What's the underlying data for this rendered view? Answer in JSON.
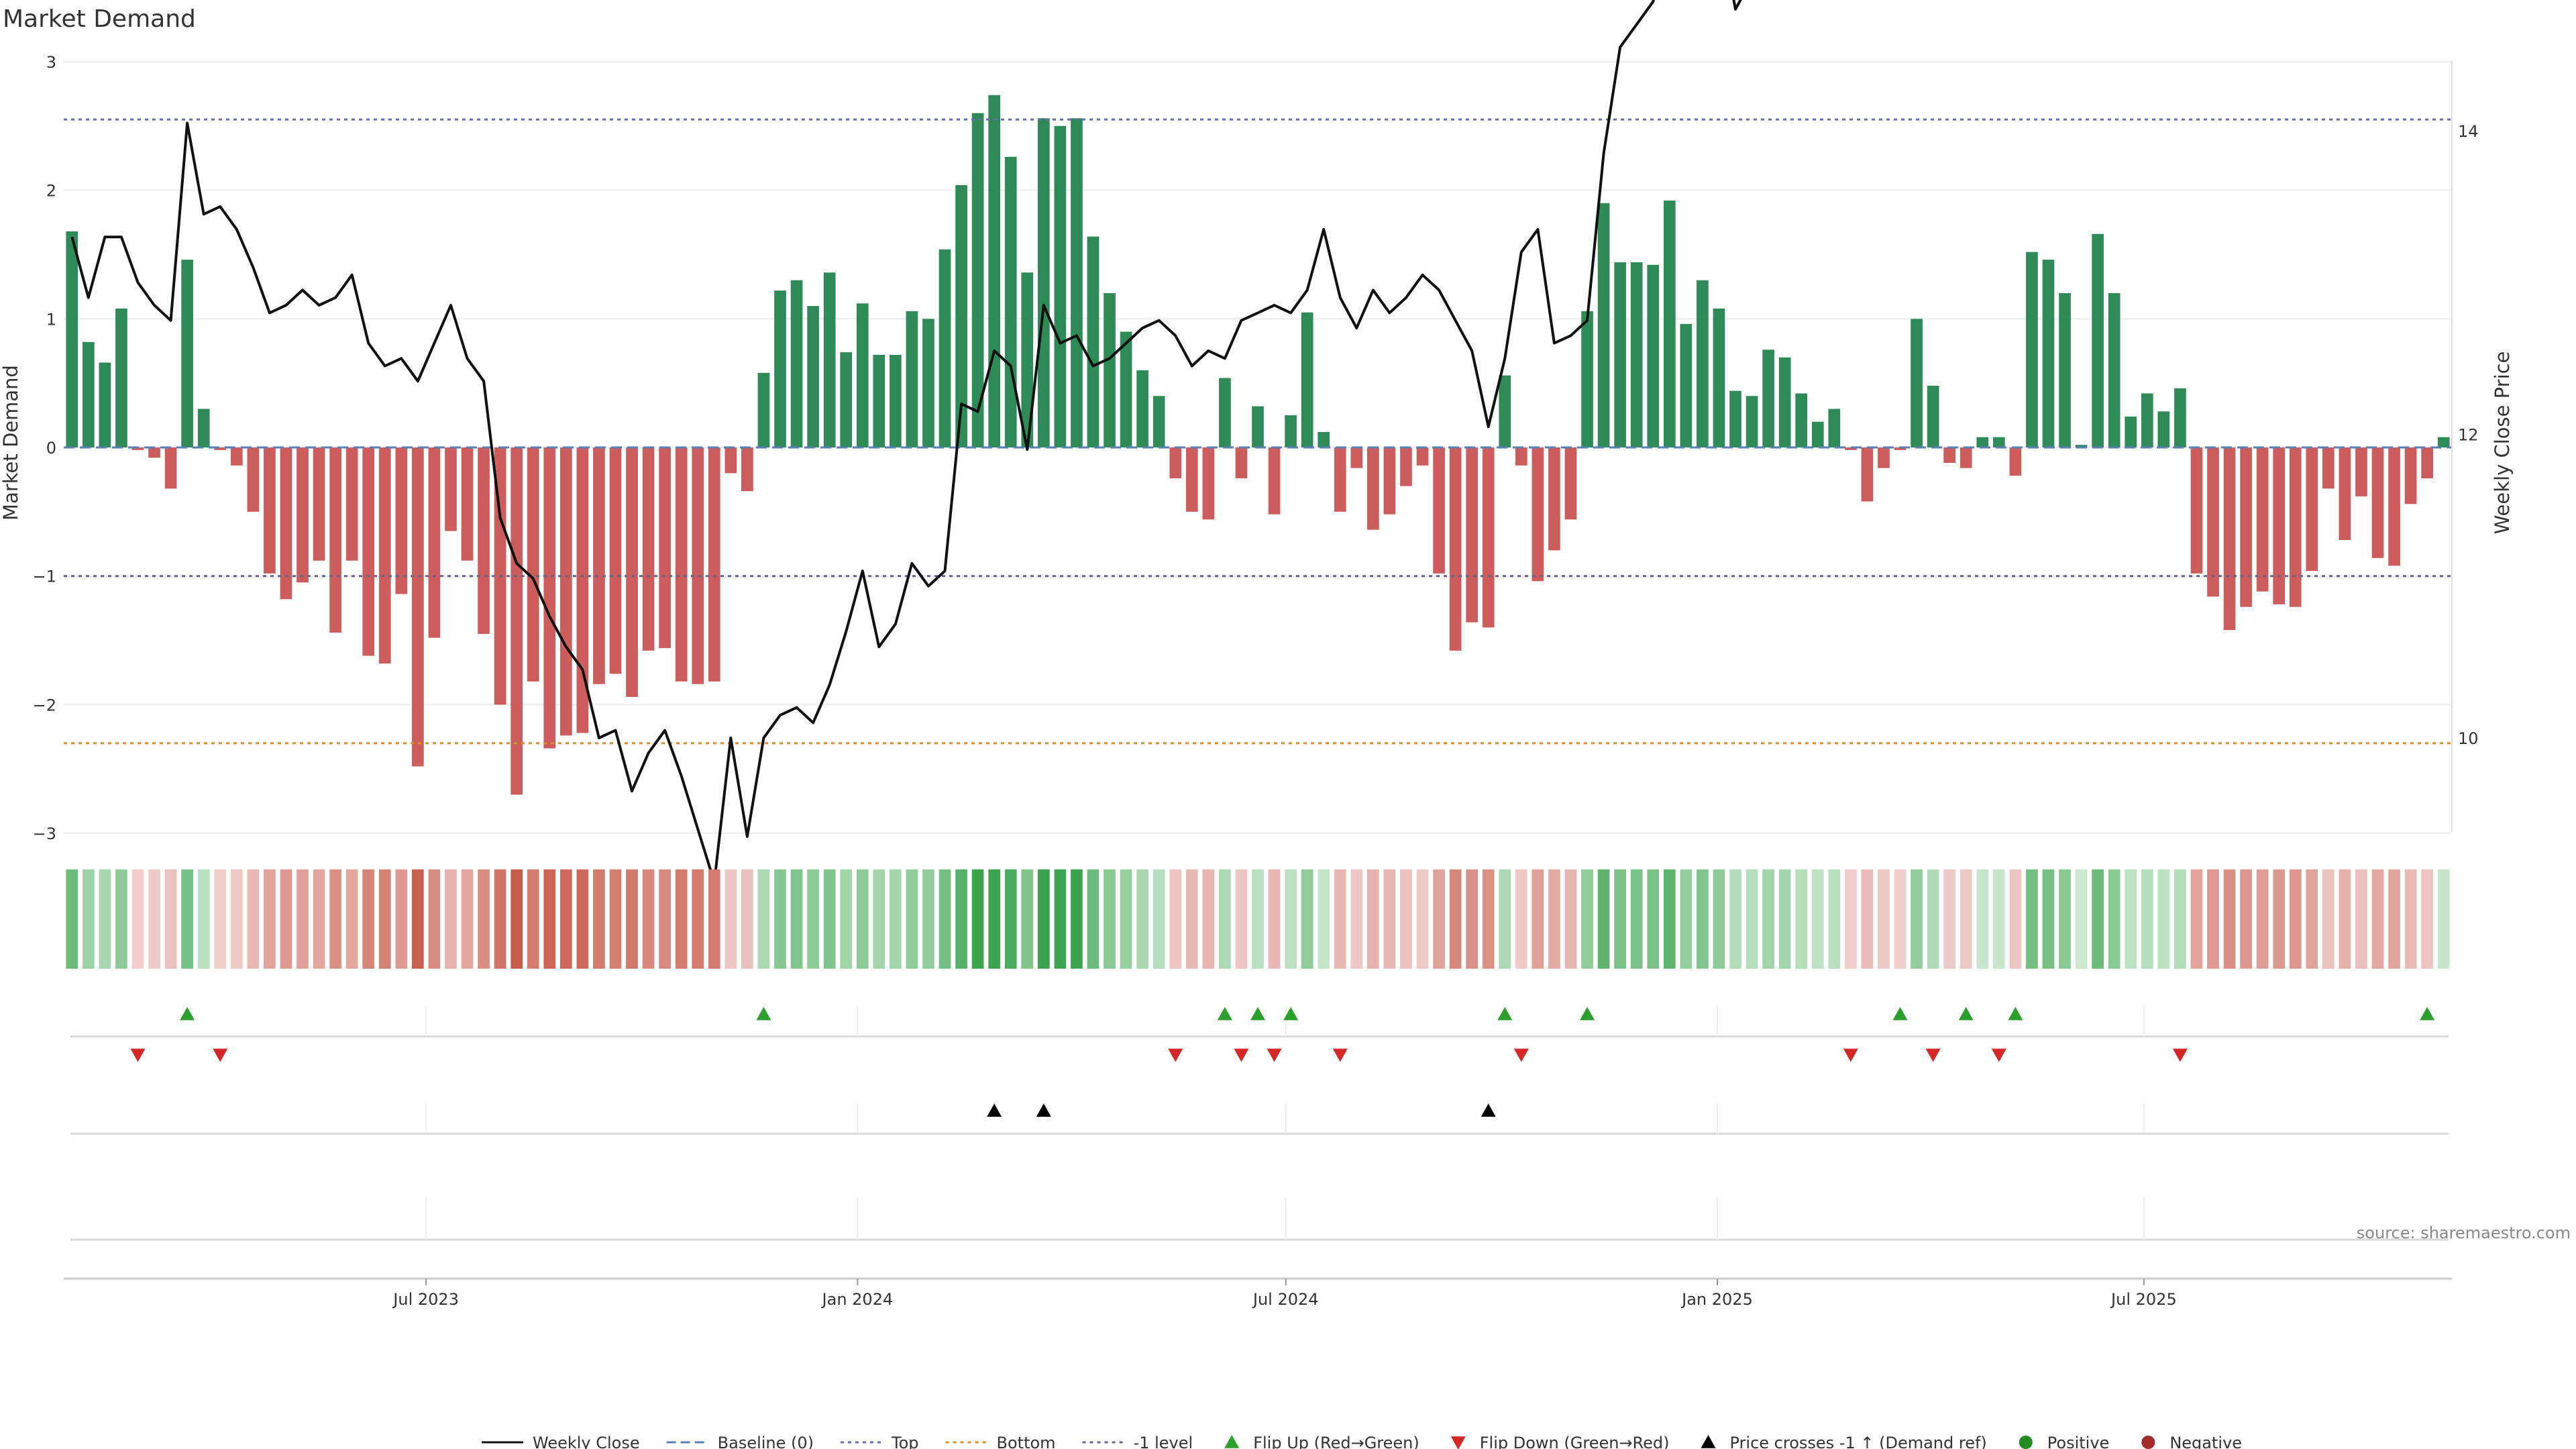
{
  "chart_data": {
    "type": "bar",
    "title": "Market Demand",
    "ylabel_left": "Market Demand",
    "ylabel_right": "Weekly Close Price",
    "ylim_left": [
      -3,
      3
    ],
    "ylim_right": [
      9,
      19
    ],
    "yticks_left": [
      3,
      2,
      1,
      0,
      -1,
      -2,
      -3
    ],
    "yticks_left_labels": [
      "3",
      "2",
      "1",
      "0",
      "−1",
      "−2",
      "−3"
    ],
    "yticks_right": [
      18,
      16,
      14,
      12,
      10
    ],
    "x_ticks": [
      {
        "week": 21.5,
        "label": "Jul 2023"
      },
      {
        "week": 47.7,
        "label": "Jan 2024"
      },
      {
        "week": 73.7,
        "label": "Jul 2024"
      },
      {
        "week": 99.9,
        "label": "Jan 2025"
      },
      {
        "week": 125.8,
        "label": "Jul 2025"
      }
    ],
    "reference_lines": [
      {
        "name": "Top",
        "value": 2.55,
        "color": "#6b6bb3",
        "style": "dotted"
      },
      {
        "name": "Bottom",
        "value": -2.3,
        "color": "#d9902e",
        "style": "dotted"
      },
      {
        "name": "-1 level",
        "value": -1,
        "color": "#666688",
        "style": "dotted"
      },
      {
        "name": "Baseline (0)",
        "value": 0,
        "color": "#5a7fb5",
        "style": "dashed"
      }
    ],
    "colors": {
      "positive": "#2e8b57",
      "negative": "#cd5c5c",
      "price": "#111111",
      "flip_up": "#2ca02c",
      "flip_down": "#d62728",
      "cross": "#000000"
    },
    "demand": [
      1.68,
      0.82,
      0.66,
      1.08,
      -0.02,
      -0.08,
      -0.32,
      1.46,
      0.3,
      -0.02,
      -0.14,
      -0.5,
      -0.98,
      -1.18,
      -1.05,
      -0.88,
      -1.44,
      -0.88,
      -1.62,
      -1.68,
      -1.14,
      -2.48,
      -1.48,
      -0.65,
      -0.88,
      -1.45,
      -2.0,
      -2.7,
      -1.82,
      -2.34,
      -2.24,
      -2.22,
      -1.84,
      -1.76,
      -1.94,
      -1.58,
      -1.56,
      -1.82,
      -1.84,
      -1.82,
      -0.2,
      -0.34,
      0.58,
      1.22,
      1.3,
      1.1,
      1.36,
      0.74,
      1.12,
      0.72,
      0.72,
      1.06,
      1.0,
      1.54,
      2.04,
      2.6,
      2.74,
      2.26,
      1.36,
      2.56,
      2.5,
      2.56,
      1.64,
      1.2,
      0.9,
      0.6,
      0.4,
      -0.24,
      -0.5,
      -0.56,
      0.54,
      -0.24,
      0.32,
      -0.52,
      0.25,
      1.05,
      0.12,
      -0.5,
      -0.16,
      -0.64,
      -0.52,
      -0.3,
      -0.14,
      -0.98,
      -1.58,
      -1.36,
      -1.4,
      0.56,
      -0.14,
      -1.04,
      -0.8,
      -0.56,
      1.06,
      1.9,
      1.44,
      1.44,
      1.42,
      1.92,
      0.96,
      1.3,
      1.08,
      0.44,
      0.4,
      0.76,
      0.7,
      0.42,
      0.2,
      0.3,
      -0.02,
      -0.42,
      -0.16,
      -0.02,
      1.0,
      0.48,
      -0.12,
      -0.16,
      0.08,
      0.08,
      -0.22,
      1.52,
      1.46,
      1.2,
      0.02,
      1.66,
      1.2,
      0.24,
      0.42,
      0.28,
      0.46,
      -0.98,
      -1.16,
      -1.42,
      -1.24,
      -1.12,
      -1.22,
      -1.24,
      -0.96,
      -0.32,
      -0.72,
      -0.38,
      -0.86,
      -0.92,
      -0.44,
      -0.24,
      0.08
    ],
    "price": [
      13.3,
      12.9,
      13.3,
      13.3,
      13.0,
      12.85,
      12.75,
      14.05,
      13.45,
      13.5,
      13.35,
      13.1,
      12.8,
      12.85,
      12.95,
      12.85,
      12.9,
      13.05,
      12.6,
      12.45,
      12.5,
      12.35,
      12.6,
      12.85,
      12.5,
      12.35,
      11.45,
      11.15,
      11.05,
      10.8,
      10.6,
      10.45,
      10.0,
      10.05,
      9.65,
      9.9,
      10.05,
      9.75,
      9.4,
      9.05,
      10.0,
      9.35,
      10.0,
      10.15,
      10.2,
      10.1,
      10.35,
      10.7,
      11.1,
      10.6,
      10.75,
      11.15,
      11.0,
      11.1,
      12.2,
      12.15,
      12.55,
      12.45,
      11.9,
      12.85,
      12.6,
      12.65,
      12.45,
      12.5,
      12.6,
      12.7,
      12.75,
      12.65,
      12.45,
      12.55,
      12.5,
      12.75,
      12.8,
      12.85,
      12.8,
      12.95,
      13.35,
      12.9,
      12.7,
      12.95,
      12.8,
      12.9,
      13.05,
      12.95,
      12.75,
      12.55,
      12.05,
      12.5,
      13.2,
      13.35,
      12.6,
      12.65,
      12.75,
      13.85,
      14.55,
      14.7,
      14.85,
      15.25,
      15.0,
      15.05,
      15.4,
      14.8,
      15.0,
      15.4,
      15.5,
      15.4,
      15.75,
      16.0,
      15.45,
      15.85,
      16.2,
      16.7,
      16.65,
      16.0,
      16.3,
      16.5,
      16.55,
      16.45,
      16.45,
      17.95,
      17.95,
      17.65,
      16.9,
      18.45,
      18.2,
      17.6,
      18.1,
      18.1,
      18.2,
      17.1,
      16.75,
      16.85,
      16.0,
      16.15,
      16.0,
      15.95,
      15.85,
      16.85,
      16.25,
      16.95,
      16.95,
      16.4,
      16.9,
      16.8,
      17.0
    ],
    "flip_up_weeks": [
      7,
      42,
      70,
      72,
      74,
      87,
      92,
      111,
      115,
      118,
      143
    ],
    "flip_down_weeks": [
      4,
      9,
      67,
      71,
      73,
      77,
      88,
      108,
      113,
      117,
      128
    ],
    "price_cross_weeks": [
      56,
      59,
      86
    ],
    "legend": [
      {
        "label": "Weekly Close",
        "kind": "line-solid"
      },
      {
        "label": "Baseline (0)",
        "kind": "line-dashed"
      },
      {
        "label": "Top",
        "kind": "line-dotted-blue"
      },
      {
        "label": "Bottom",
        "kind": "line-dotted-orange"
      },
      {
        "label": "-1 level",
        "kind": "line-dotted-gray"
      },
      {
        "label": "Flip Up (Red→Green)",
        "kind": "tri-up-green"
      },
      {
        "label": "Flip Down (Green→Red)",
        "kind": "tri-down-red"
      },
      {
        "label": "Price crosses -1 ↑ (Demand ref)",
        "kind": "tri-up-black"
      },
      {
        "label": "Positive",
        "kind": "dot-green"
      },
      {
        "label": "Negative",
        "kind": "dot-red"
      }
    ]
  },
  "source": "source: sharemaestro.com"
}
